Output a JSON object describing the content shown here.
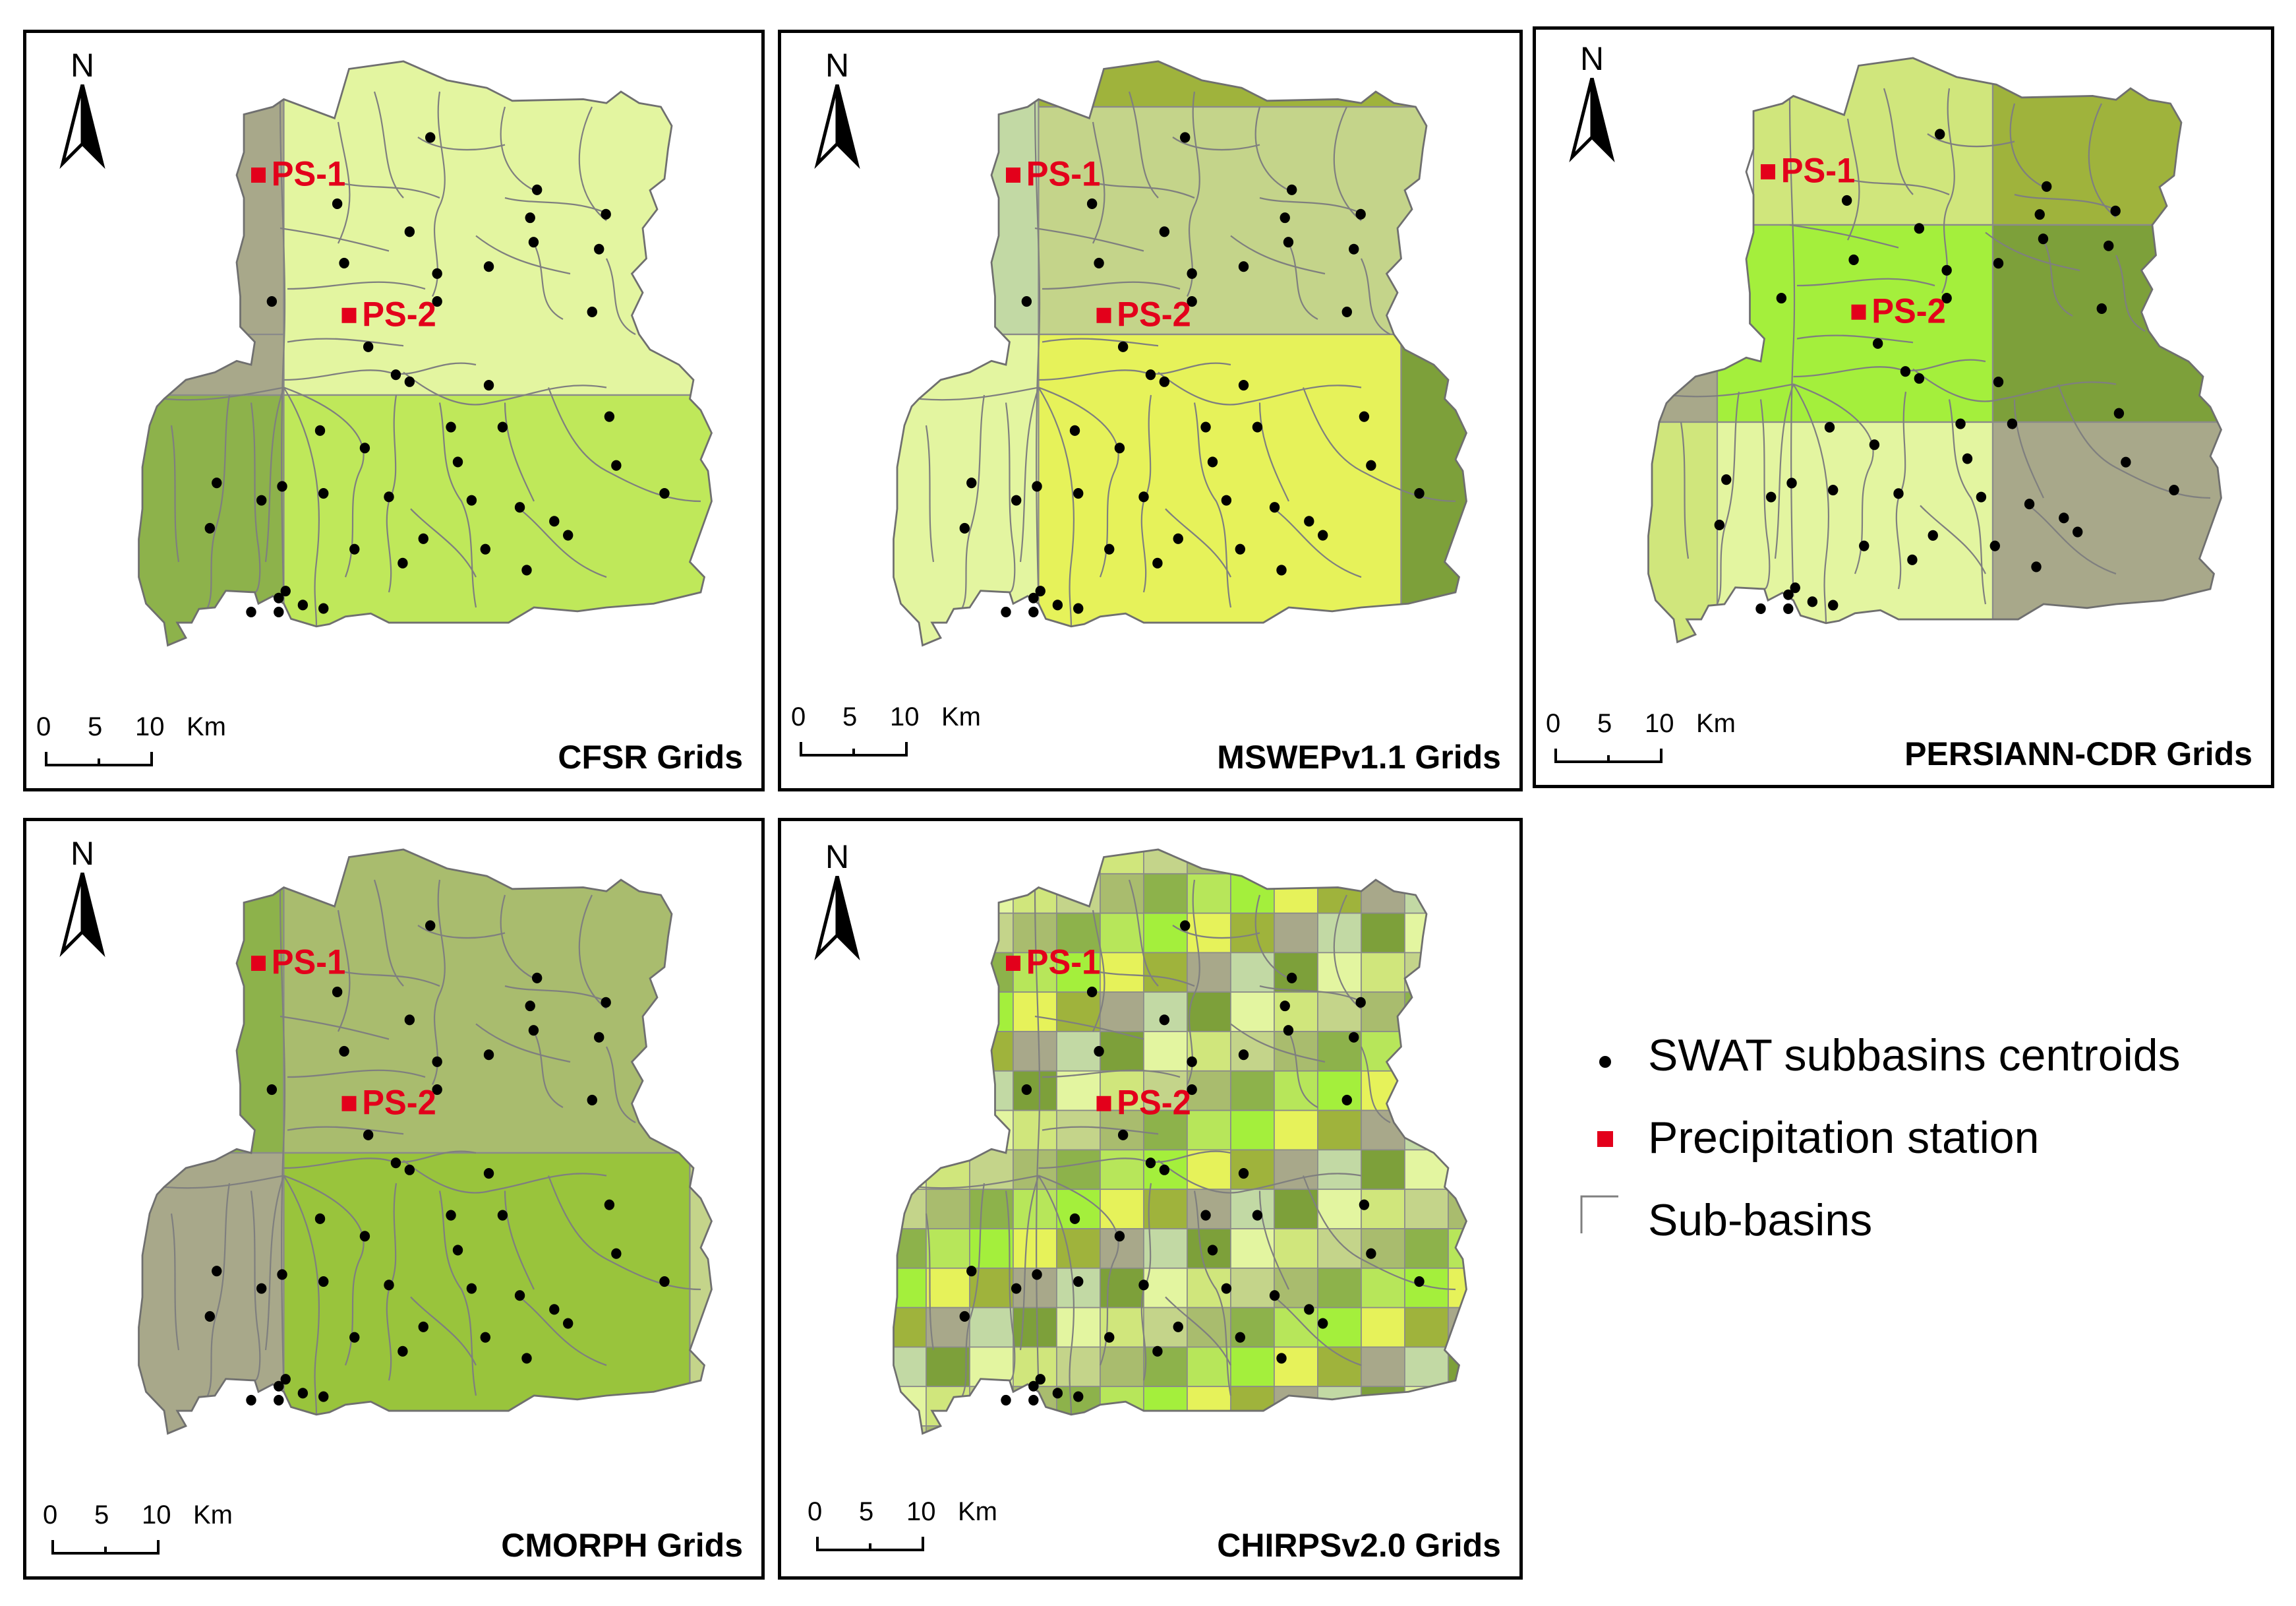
{
  "panels": [
    {
      "title": "CFSR Grids",
      "stations": [
        "PS-1",
        "PS-2"
      ]
    },
    {
      "title": "MSWEPv1.1 Grids",
      "stations": [
        "PS-1",
        "PS-2"
      ]
    },
    {
      "title": "PERSIANN-CDR Grids",
      "stations": [
        "PS-1",
        "PS-2"
      ]
    },
    {
      "title": "CMORPH Grids",
      "stations": [
        "PS-1",
        "PS-2"
      ]
    },
    {
      "title": "CHIRPSv2.0 Grids",
      "stations": [
        "PS-1",
        "PS-2"
      ]
    }
  ],
  "north_label": "N",
  "scale": {
    "ticks": [
      "0",
      "5",
      "10"
    ],
    "unit": "Km"
  },
  "legend": {
    "centroids": "SWAT subbasins centroids",
    "station": "Precipitation station",
    "subbasins": "Sub-basins"
  },
  "colors": {
    "station": "#e3001b",
    "centroid": "#000000",
    "subbasin_border": "#7f7f7f",
    "palette": [
      "#e3f5a0",
      "#d0e67c",
      "#c4d48a",
      "#a9bc6e",
      "#8db24b",
      "#b7e65a",
      "#a4ef3c",
      "#e6f25a",
      "#9fb33c",
      "#a8a88a",
      "#c2d9a4",
      "#7da03a"
    ]
  },
  "grid_cells": {
    "CFSR": [
      "#e3f5a0",
      "#b8d36e",
      "#a8a88a",
      "#8db24b",
      "#bfe85a",
      "#e3f5a0"
    ],
    "MSWEP": [
      "#c4d48a",
      "#c2d9a4",
      "#e3f5a0",
      "#e6f25a",
      "#9fb33c",
      "#7da03a"
    ],
    "PERSIANN": [
      "#a4ef3c",
      "#e3f5a0",
      "#9fb33c",
      "#a8a88a",
      "#7da03a",
      "#d0e67c"
    ],
    "CMORPH": [
      "#a9bc6e",
      "#c4d48a",
      "#8db24b",
      "#99c43c",
      "#a8a88a"
    ]
  }
}
